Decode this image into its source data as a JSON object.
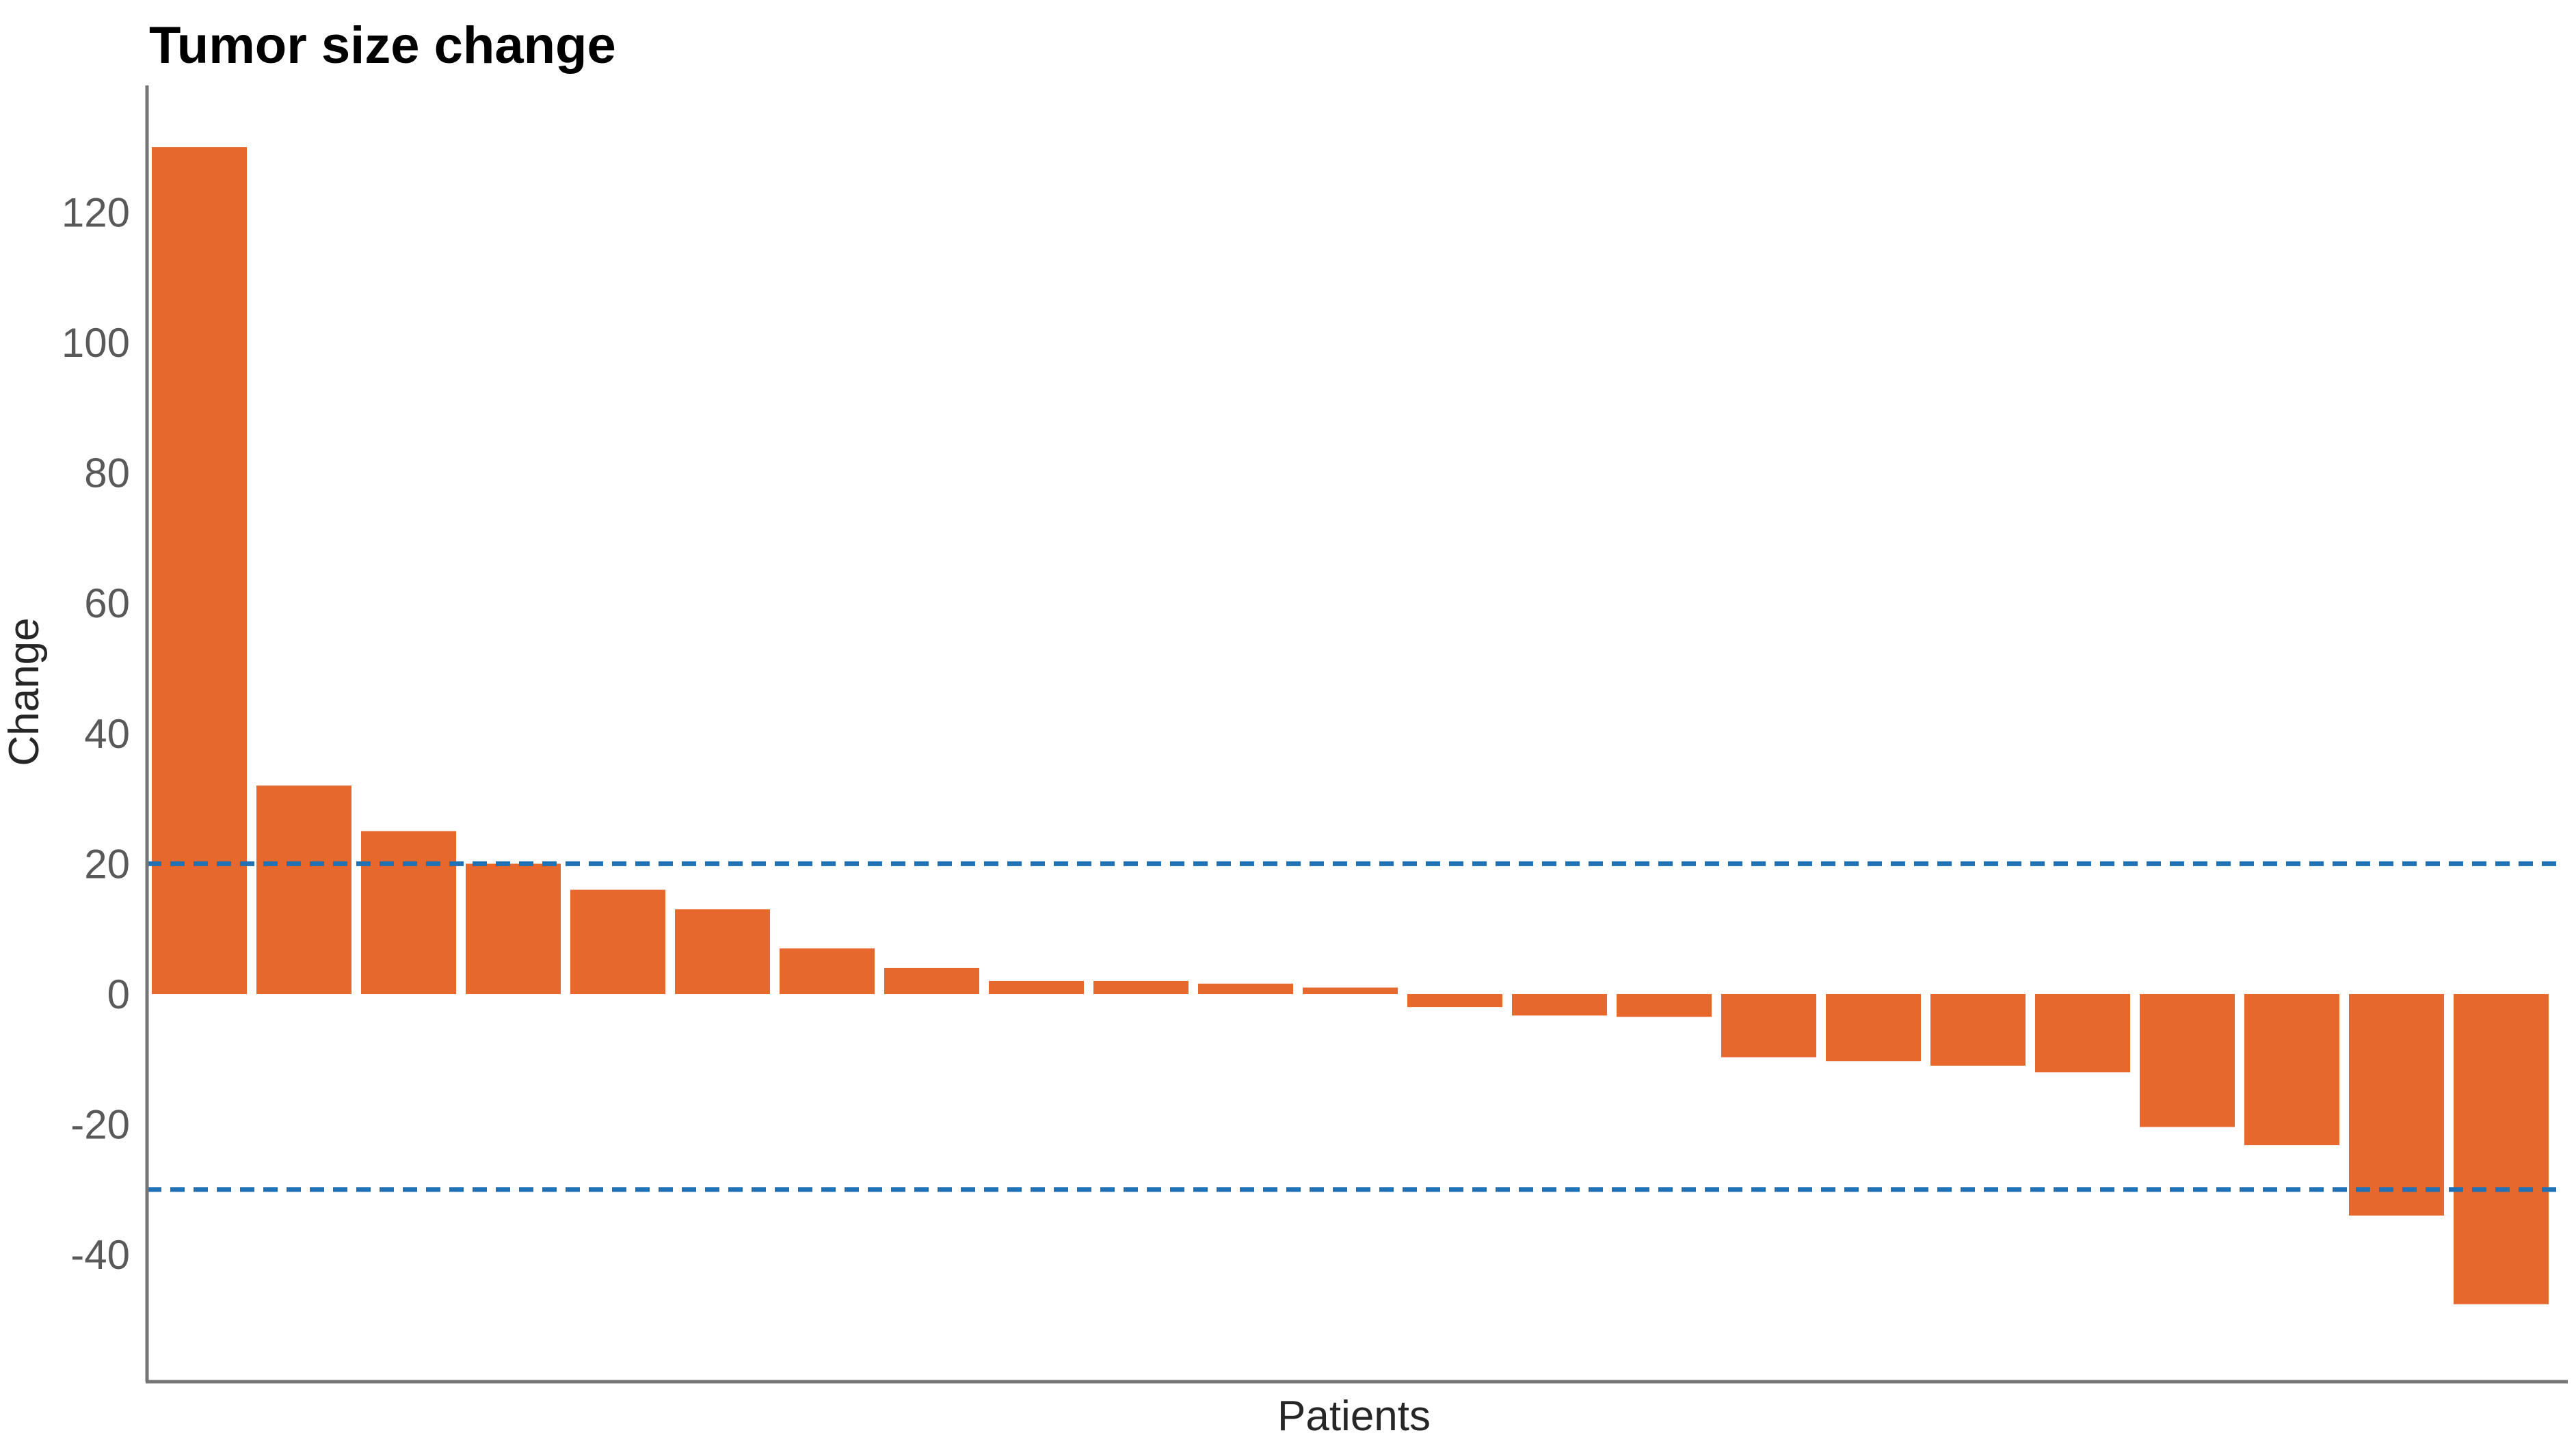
{
  "figure": {
    "background": "#ffffff"
  },
  "chart_data": {
    "type": "bar",
    "title": "Tumor size change",
    "xlabel": "Patients",
    "ylabel": "Change",
    "values": [
      130,
      32,
      25,
      20,
      16,
      13,
      7,
      4,
      2,
      2,
      1.6,
      1,
      -2,
      -3.3,
      -3.5,
      -9.7,
      -10.3,
      -11,
      -12,
      -20.4,
      -23.2,
      -34,
      -47.6
    ],
    "n_patients": 23,
    "yticks": [
      120,
      100,
      80,
      60,
      40,
      20,
      0,
      -20,
      -40
    ],
    "ylim": [
      -59,
      139
    ],
    "thresholds": [
      20,
      -30
    ],
    "grid": false,
    "legend": false,
    "x_tick_labels": [],
    "colors": {
      "bar": "#E6682C",
      "threshold": "#2171B5",
      "axis": "#757575",
      "tick_text": "#595959",
      "axis_label_text": "#262626",
      "title_text": "#000000"
    }
  }
}
